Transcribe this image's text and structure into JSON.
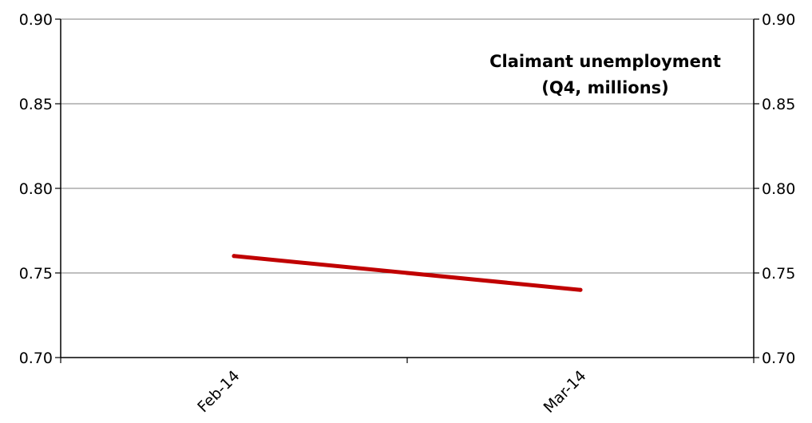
{
  "chart_data": {
    "type": "line",
    "title_lines": [
      "Claimant unemployment",
      "(Q4, millions)"
    ],
    "xlabel": "",
    "ylabel": "",
    "categories": [
      "Feb-14",
      "Mar-14"
    ],
    "series": [
      {
        "values": [
          0.76,
          0.74
        ],
        "color": "#c00000"
      }
    ],
    "ylim": [
      0.7,
      0.9
    ],
    "y_ticks": [
      "0.70",
      "0.75",
      "0.80",
      "0.85",
      "0.90"
    ],
    "y_tick_values": [
      0.7,
      0.75,
      0.8,
      0.85,
      0.9
    ],
    "y_axis_sides": "left-and-right",
    "grid": true,
    "legend": "none"
  }
}
